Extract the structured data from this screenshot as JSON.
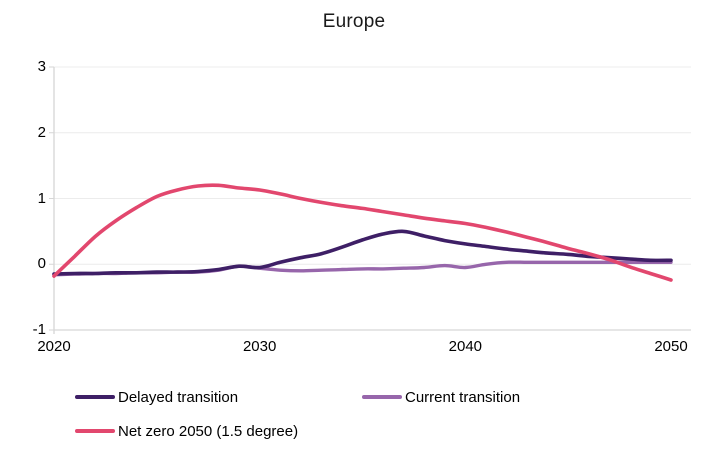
{
  "page_title": "Europe",
  "colors": {
    "background": "#ffffff",
    "grid": "#ececec",
    "axis": "#d6d6d6",
    "text": "#000000"
  },
  "chart_data": {
    "type": "line",
    "title": "Europe",
    "xlabel": "",
    "ylabel": "",
    "xlim": [
      2020,
      2050
    ],
    "ylim": [
      -1,
      3
    ],
    "grid": "horizontal",
    "legend_position": "bottom",
    "x_ticks": [
      2020,
      2030,
      2040,
      2050
    ],
    "y_ticks": [
      3,
      2,
      1,
      0,
      -1
    ],
    "x": [
      2020,
      2021,
      2022,
      2023,
      2024,
      2025,
      2026,
      2027,
      2028,
      2029,
      2030,
      2031,
      2032,
      2033,
      2034,
      2035,
      2036,
      2037,
      2038,
      2039,
      2040,
      2041,
      2042,
      2043,
      2044,
      2045,
      2046,
      2047,
      2048,
      2049,
      2050
    ],
    "series": [
      {
        "name": "Delayed transition",
        "color": "#3e1f66",
        "values": [
          -0.15,
          -0.14,
          -0.14,
          -0.13,
          -0.13,
          -0.12,
          -0.12,
          -0.11,
          -0.08,
          -0.03,
          -0.05,
          0.03,
          0.1,
          0.16,
          0.26,
          0.37,
          0.46,
          0.5,
          0.43,
          0.36,
          0.31,
          0.27,
          0.23,
          0.2,
          0.17,
          0.15,
          0.12,
          0.1,
          0.08,
          0.06,
          0.06
        ]
      },
      {
        "name": "Current transition",
        "color": "#9766ab",
        "values": [
          -0.16,
          -0.15,
          -0.14,
          -0.14,
          -0.13,
          -0.13,
          -0.12,
          -0.12,
          -0.09,
          -0.03,
          -0.06,
          -0.09,
          -0.1,
          -0.09,
          -0.08,
          -0.07,
          -0.07,
          -0.06,
          -0.05,
          -0.02,
          -0.05,
          0.0,
          0.03,
          0.03,
          0.03,
          0.03,
          0.03,
          0.03,
          0.03,
          0.03,
          0.03
        ]
      },
      {
        "name": "Net zero 2050 (1.5 degree)",
        "color": "#e2476e",
        "values": [
          -0.18,
          0.12,
          0.42,
          0.66,
          0.86,
          1.03,
          1.13,
          1.19,
          1.2,
          1.16,
          1.13,
          1.07,
          1.0,
          0.94,
          0.89,
          0.85,
          0.8,
          0.75,
          0.7,
          0.66,
          0.62,
          0.56,
          0.49,
          0.41,
          0.33,
          0.24,
          0.16,
          0.07,
          -0.04,
          -0.14,
          -0.24
        ]
      }
    ]
  }
}
